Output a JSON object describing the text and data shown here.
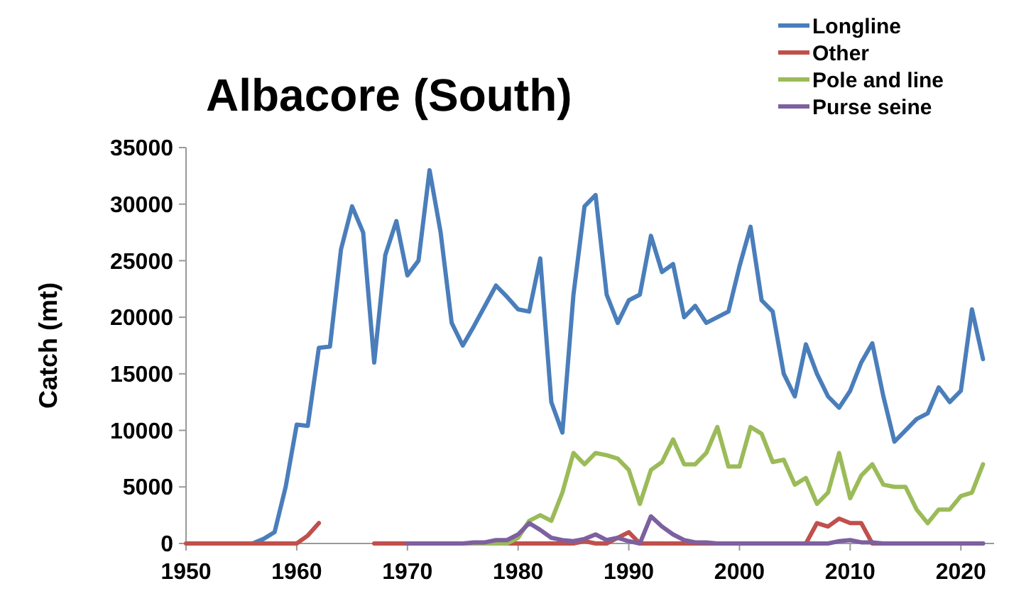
{
  "chart_data": {
    "type": "line",
    "title": "Albacore (South)",
    "ylabel": "Catch (mt)",
    "x": [
      1950,
      1951,
      1952,
      1953,
      1954,
      1955,
      1956,
      1957,
      1958,
      1959,
      1960,
      1961,
      1962,
      1963,
      1964,
      1965,
      1966,
      1967,
      1968,
      1969,
      1970,
      1971,
      1972,
      1973,
      1974,
      1975,
      1976,
      1977,
      1978,
      1979,
      1980,
      1981,
      1982,
      1983,
      1984,
      1985,
      1986,
      1987,
      1988,
      1989,
      1990,
      1991,
      1992,
      1993,
      1994,
      1995,
      1996,
      1997,
      1998,
      1999,
      2000,
      2001,
      2002,
      2003,
      2004,
      2005,
      2006,
      2007,
      2008,
      2009,
      2010,
      2011,
      2012,
      2013,
      2014,
      2015,
      2016,
      2017,
      2018,
      2019,
      2020,
      2021,
      2022
    ],
    "series": [
      {
        "name": "Longline",
        "color": "#4a7ebb",
        "values": [
          null,
          null,
          null,
          null,
          null,
          null,
          0,
          400,
          1000,
          5000,
          10500,
          10400,
          17300,
          17400,
          26000,
          29800,
          27500,
          16000,
          25500,
          28500,
          23700,
          25000,
          33000,
          27500,
          19500,
          17500,
          19200,
          21000,
          22800,
          21800,
          20700,
          20500,
          25200,
          12500,
          9800,
          22000,
          29800,
          30800,
          22000,
          19500,
          21500,
          22000,
          27200,
          24000,
          24700,
          20000,
          21000,
          19500,
          20000,
          20500,
          24500,
          28000,
          21500,
          20500,
          15000,
          13000,
          17600,
          15000,
          13000,
          12000,
          13500,
          16000,
          17700,
          13000,
          9000,
          10000,
          11000,
          11500,
          13800,
          12500,
          13500,
          20700,
          16300
        ]
      },
      {
        "name": "Other",
        "color": "#c0504d",
        "values": [
          0,
          0,
          0,
          0,
          0,
          0,
          0,
          0,
          0,
          0,
          0,
          700,
          1800,
          null,
          null,
          null,
          null,
          0,
          0,
          0,
          0,
          0,
          0,
          0,
          0,
          0,
          0,
          0,
          0,
          0,
          0,
          0,
          0,
          0,
          0,
          0,
          200,
          0,
          0,
          500,
          1000,
          0,
          0,
          0,
          0,
          0,
          0,
          0,
          0,
          0,
          0,
          0,
          0,
          0,
          0,
          0,
          0,
          1800,
          1500,
          2200,
          1800,
          1800,
          0,
          0,
          0,
          0,
          0,
          0,
          0,
          0,
          0,
          0,
          0
        ]
      },
      {
        "name": "Pole and line",
        "color": "#9bbb59",
        "values": [
          null,
          null,
          null,
          null,
          null,
          null,
          null,
          null,
          null,
          null,
          null,
          null,
          null,
          null,
          null,
          null,
          null,
          null,
          null,
          null,
          null,
          null,
          null,
          null,
          null,
          0,
          0,
          0,
          0,
          0,
          500,
          2000,
          2500,
          2000,
          4500,
          8000,
          7000,
          8000,
          7800,
          7500,
          6500,
          3500,
          6500,
          7200,
          9200,
          7000,
          7000,
          8000,
          10300,
          6800,
          6800,
          10300,
          9700,
          7200,
          7400,
          5200,
          5800,
          3500,
          4500,
          8000,
          4000,
          6000,
          7000,
          5200,
          5000,
          5000,
          3000,
          1800,
          3000,
          3000,
          4200,
          4500,
          7000
        ]
      },
      {
        "name": "Purse seine",
        "color": "#7d60a0",
        "values": [
          null,
          null,
          null,
          null,
          null,
          null,
          null,
          null,
          null,
          null,
          null,
          null,
          null,
          null,
          null,
          null,
          null,
          null,
          null,
          null,
          0,
          0,
          0,
          0,
          0,
          0,
          100,
          100,
          300,
          300,
          800,
          1800,
          1200,
          500,
          300,
          200,
          400,
          800,
          300,
          500,
          200,
          0,
          2400,
          1500,
          800,
          300,
          100,
          100,
          0,
          0,
          0,
          0,
          0,
          0,
          0,
          0,
          0,
          0,
          0,
          200,
          300,
          100,
          100,
          0,
          0,
          0,
          0,
          0,
          0,
          0,
          0,
          0,
          0
        ]
      }
    ],
    "xlim": [
      1950,
      2023
    ],
    "xticks": [
      1950,
      1960,
      1970,
      1980,
      1990,
      2000,
      2010,
      2020
    ],
    "ylim": [
      0,
      35000
    ],
    "yticks": [
      0,
      5000,
      10000,
      15000,
      20000,
      25000,
      30000,
      35000
    ],
    "grid": false,
    "legend": "top right",
    "marker": "none",
    "line_style": "solid"
  }
}
